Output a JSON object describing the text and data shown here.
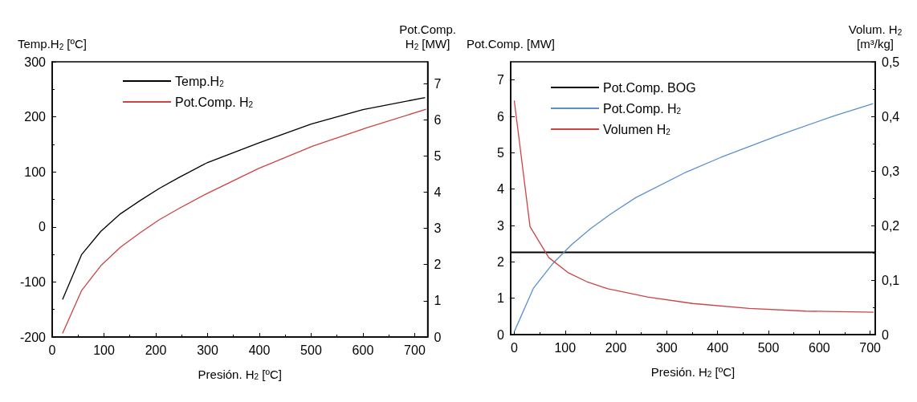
{
  "chart_data": [
    {
      "type": "line",
      "xlabel": "Presión. H$_{2}$ [ºC]",
      "ylabel": "Temp.H$_{2}$ [ºC]",
      "y2label": "Pot.Comp.\nH$_{2}$ [MW]",
      "xlim": [
        0,
        725
      ],
      "xticks": [
        0,
        100,
        200,
        300,
        400,
        500,
        600,
        700
      ],
      "ylim": [
        -200,
        300
      ],
      "yticks": [
        -200,
        -100,
        0,
        100,
        200,
        300
      ],
      "y2lim": [
        0,
        7.6
      ],
      "y2ticks": [
        0,
        1,
        2,
        3,
        4,
        5,
        6,
        7
      ],
      "grid": false,
      "legend": "top left",
      "marker": "none",
      "series": [
        {
          "name": "Temp.H$_{2}$",
          "color": "#000000",
          "x": [
            20,
            57,
            94,
            132,
            170,
            207,
            245,
            300,
            400,
            500,
            600,
            720
          ],
          "values": [
            -132,
            -50,
            -8,
            24,
            48,
            70,
            90,
            117,
            153,
            187,
            213,
            235
          ]
        },
        {
          "name": "Pot.Comp. H$_{2}$",
          "color": "#cc4444",
          "axis": "y2",
          "x": [
            20,
            57,
            94,
            132,
            170,
            207,
            245,
            296,
            398,
            503,
            608,
            722
          ],
          "values": [
            0.1,
            1.29,
            1.97,
            2.48,
            2.88,
            3.24,
            3.55,
            3.94,
            4.65,
            5.27,
            5.78,
            6.29
          ]
        }
      ]
    },
    {
      "type": "line",
      "xlabel": "Presión. H$_{2}$ [ºC]",
      "ylabel": "Pot.Comp. [MW]",
      "y2label": "Volum. H$_{2}$\n[m³/kg]",
      "xlim": [
        -7,
        710
      ],
      "xticks": [
        0,
        100,
        200,
        300,
        400,
        500,
        600,
        700
      ],
      "ylim": [
        0,
        7.5
      ],
      "yticks": [
        0,
        1,
        2,
        3,
        4,
        5,
        6,
        7
      ],
      "y2lim": [
        0,
        0.5
      ],
      "y2ticks": [
        {
          "value": 0,
          "label": "0"
        },
        {
          "value": 0.1,
          "label": "0,1"
        },
        {
          "value": 0.2,
          "label": "0,2"
        },
        {
          "value": 0.3,
          "label": "0,3"
        },
        {
          "value": 0.4,
          "label": "0,4"
        },
        {
          "value": 0.5,
          "label": "0,5"
        }
      ],
      "grid": false,
      "legend": "top left",
      "marker": "none",
      "series": [
        {
          "name": "Pot.Comp. BOG",
          "color": "#000000",
          "x": [
            -7,
            710
          ],
          "values": [
            2.26,
            2.26
          ]
        },
        {
          "name": "Pot.Comp. H$_{2}$",
          "color": "#5b8fd0",
          "x": [
            0,
            37.5,
            75,
            112.6,
            150,
            189,
            239.5,
            334,
            406,
            517,
            628,
            706
          ],
          "values": [
            0.08,
            1.27,
            1.94,
            2.47,
            2.91,
            3.31,
            3.77,
            4.44,
            4.87,
            5.46,
            6.01,
            6.35
          ]
        },
        {
          "name": "Volumen H$_{2}$",
          "color": "#cc4444",
          "axis": "y2",
          "x": [
            0,
            31,
            68,
            107,
            145,
            184,
            262,
            351,
            462,
            573,
            707
          ],
          "values": [
            0.429,
            0.198,
            0.141,
            0.113,
            0.096,
            0.084,
            0.069,
            0.057,
            0.048,
            0.043,
            0.041
          ]
        }
      ]
    }
  ]
}
